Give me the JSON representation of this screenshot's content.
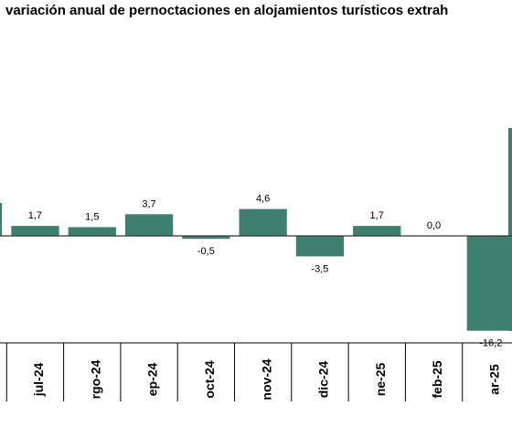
{
  "chart_data": {
    "type": "bar",
    "title": "variación anual de pernoctaciones en alojamientos turísticos extrah",
    "categories": [
      "",
      "jul-24",
      "rgo-24",
      "ep-24",
      "oct-24",
      "nov-24",
      "dic-24",
      "ne-25",
      "feb-25",
      "ar-25",
      ""
    ],
    "values": [
      null,
      1.7,
      1.5,
      3.7,
      -0.5,
      4.6,
      -3.5,
      1.7,
      0.0,
      -16.2,
      null
    ],
    "data_labels": [
      "",
      "1,7",
      "1,5",
      "3,7",
      "-0,5",
      "4,6",
      "-3,5",
      "1,7",
      "0,0",
      "-16,2",
      ""
    ],
    "colors": {
      "bar": "#3f7f70",
      "zero_line": "#333333",
      "axis": "#000000"
    },
    "grid": false,
    "legend": "none"
  }
}
